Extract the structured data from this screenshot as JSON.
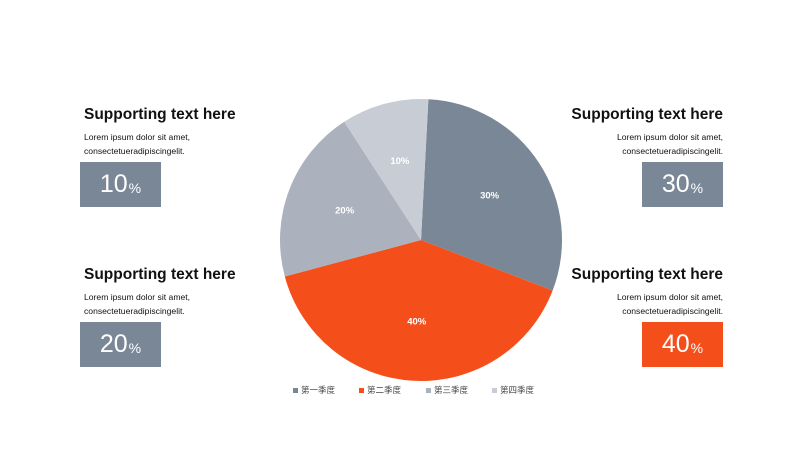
{
  "colors": {
    "q1": "#7a8797",
    "q2": "#f44f1a",
    "q3": "#abb2bd",
    "q4": "#c8cdd5",
    "box_gray": "#7a8797",
    "box_orange": "#f44f1a"
  },
  "panels": [
    {
      "heading": "Supporting text here",
      "line1": "Lorem ipsum dolor sit amet,",
      "line2": "consectetueradipiscingelit.",
      "value": "10",
      "unit": "%"
    },
    {
      "heading": "Supporting text here",
      "line1": "Lorem ipsum dolor sit amet,",
      "line2": "consectetueradipiscingelit.",
      "value": "20",
      "unit": "%"
    },
    {
      "heading": "Supporting text here",
      "line1": "Lorem ipsum dolor sit amet,",
      "line2": "consectetueradipiscingelit.",
      "value": "30",
      "unit": "%"
    },
    {
      "heading": "Supporting text here",
      "line1": "Lorem ipsum dolor sit amet,",
      "line2": "consectetueradipiscingelit.",
      "value": "40",
      "unit": "%"
    }
  ],
  "chart_data": {
    "type": "pie",
    "categories": [
      "第一季度",
      "第二季度",
      "第三季度",
      "第四季度"
    ],
    "values": [
      30,
      40,
      20,
      10
    ],
    "labels": [
      "30%",
      "40%",
      "20%",
      "10%"
    ],
    "colors": [
      "#7a8797",
      "#f44f1a",
      "#abb2bd",
      "#c8cdd5"
    ],
    "legend_position": "bottom",
    "title": ""
  }
}
